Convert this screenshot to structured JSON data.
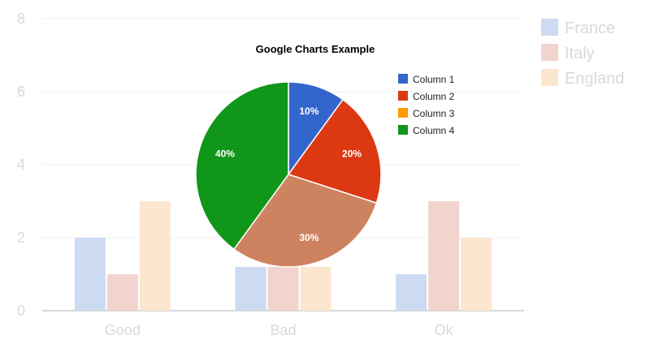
{
  "chart_data": [
    {
      "type": "bar",
      "categories": [
        "Good",
        "Bad",
        "Ok"
      ],
      "series": [
        {
          "name": "France",
          "values": [
            2,
            1.2,
            1
          ]
        },
        {
          "name": "Italy",
          "values": [
            1,
            1.2,
            3
          ]
        },
        {
          "name": "England",
          "values": [
            3,
            1.2,
            2
          ]
        }
      ],
      "yticks": [
        "0",
        "2",
        "4",
        "6",
        "8"
      ],
      "ylim": [
        0,
        8
      ],
      "grid": true,
      "legend": "right",
      "colors": [
        "#cddbf2",
        "#f2d4ce",
        "#fde6cf"
      ],
      "faded": true
    },
    {
      "type": "pie",
      "title": "Google Charts Example",
      "slices": [
        {
          "name": "Column 1",
          "value": 10,
          "label": "10%",
          "color": "#3366cc"
        },
        {
          "name": "Column 2",
          "value": 20,
          "label": "20%",
          "color": "#dc3912"
        },
        {
          "name": "Column 3",
          "value": 30,
          "label": "30%",
          "color": "#ce8360",
          "legend_color": "#ff9900"
        },
        {
          "name": "Column 4",
          "value": 40,
          "label": "40%",
          "color": "#109618"
        }
      ],
      "start_angle_deg": 0,
      "legend": "right"
    }
  ]
}
